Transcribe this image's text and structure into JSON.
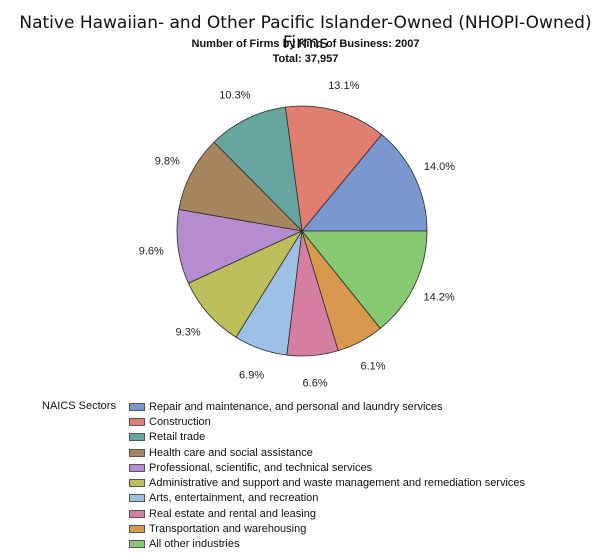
{
  "chart_data": {
    "type": "pie",
    "title": "Native Hawaiian- and Other Pacific Islander-Owned (NHOPI-Owned) Firms",
    "subtitle": "Number of Firms by Kind of Business: 2007",
    "total_label": "Total: 37,957",
    "legend_title": "NAICS Sectors",
    "legend_placement": "bottom",
    "slices": [
      {
        "label": "Repair and maintenance, and personal and laundry services",
        "value": 14.0,
        "value_label": "14.0%",
        "color": "#7b97cf"
      },
      {
        "label": "Construction",
        "value": 13.1,
        "value_label": "13.1%",
        "color": "#e07f70"
      },
      {
        "label": "Retail trade",
        "value": 10.3,
        "value_label": "10.3%",
        "color": "#67a59f"
      },
      {
        "label": "Health care and social assistance",
        "value": 9.8,
        "value_label": "9.8%",
        "color": "#a7855e"
      },
      {
        "label": "Professional, scientific, and technical services",
        "value": 9.6,
        "value_label": "9.6%",
        "color": "#b58ccf"
      },
      {
        "label": "Administrative and support and waste management and remediation services",
        "value": 9.3,
        "value_label": "9.3%",
        "color": "#bcbf5c"
      },
      {
        "label": "Arts, entertainment, and recreation",
        "value": 6.9,
        "value_label": "6.9%",
        "color": "#9dc1e6"
      },
      {
        "label": "Real estate and rental and leasing",
        "value": 6.6,
        "value_label": "6.6%",
        "color": "#d57ea1"
      },
      {
        "label": "Transportation and warehousing",
        "value": 6.1,
        "value_label": "6.1%",
        "color": "#d8994f"
      },
      {
        "label": "All other industries",
        "value": 14.2,
        "value_label": "14.2%",
        "color": "#86c971"
      }
    ]
  }
}
